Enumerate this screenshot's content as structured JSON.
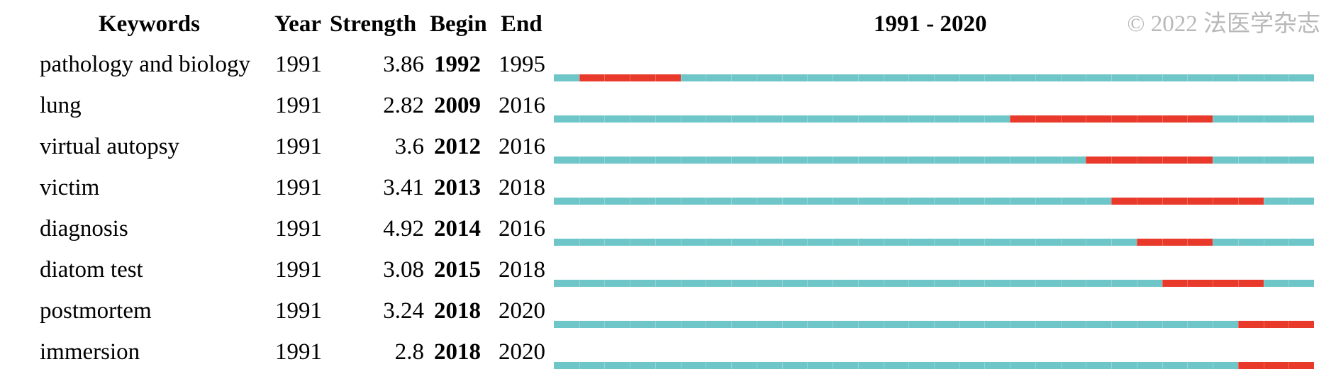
{
  "headers": {
    "keywords": "Keywords",
    "year": "Year",
    "strength": "Strength",
    "begin": "Begin",
    "end": "End",
    "range": "1991 - 2020"
  },
  "watermark": "© 2022 法医学杂志",
  "colors": {
    "track": "#6ec6c8",
    "burst": "#e8392a",
    "watermark": "#b8b8b8"
  },
  "chart_data": {
    "type": "table",
    "year_range": [
      1991,
      2020
    ],
    "columns": [
      "Keywords",
      "Year",
      "Strength",
      "Begin",
      "End",
      "1991 - 2020"
    ],
    "rows": [
      {
        "keyword": "pathology and biology",
        "year": "1991",
        "strength": "3.86",
        "begin": "1992",
        "end": "1995"
      },
      {
        "keyword": "lung",
        "year": "1991",
        "strength": "2.82",
        "begin": "2009",
        "end": "2016"
      },
      {
        "keyword": "virtual autopsy",
        "year": "1991",
        "strength": "3.6",
        "begin": "2012",
        "end": "2016"
      },
      {
        "keyword": "victim",
        "year": "1991",
        "strength": "3.41",
        "begin": "2013",
        "end": "2018"
      },
      {
        "keyword": "diagnosis",
        "year": "1991",
        "strength": "4.92",
        "begin": "2014",
        "end": "2016"
      },
      {
        "keyword": "diatom test",
        "year": "1991",
        "strength": "3.08",
        "begin": "2015",
        "end": "2018"
      },
      {
        "keyword": "postmortem",
        "year": "1991",
        "strength": "3.24",
        "begin": "2018",
        "end": "2020"
      },
      {
        "keyword": "immersion",
        "year": "1991",
        "strength": "2.8",
        "begin": "2018",
        "end": "2020"
      }
    ]
  }
}
